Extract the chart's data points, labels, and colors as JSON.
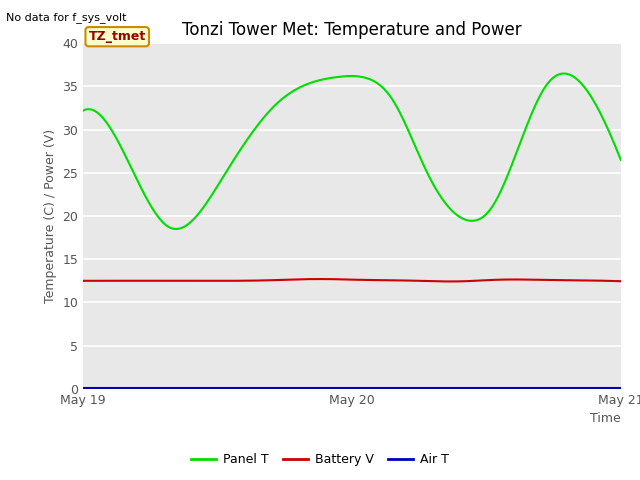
{
  "title": "Tonzi Tower Met: Temperature and Power",
  "top_left_text": "No data for f_sys_volt",
  "xlabel": "Time",
  "ylabel": "Temperature (C) / Power (V)",
  "ylim": [
    0,
    40
  ],
  "yticks": [
    0,
    5,
    10,
    15,
    20,
    25,
    30,
    35,
    40
  ],
  "plot_bg_color": "#e8e8e8",
  "fig_bg_color": "#ffffff",
  "annotation_label": "TZ_tmet",
  "x_start": 0,
  "x_end": 2.0,
  "panel_T": {
    "color": "#00dd00",
    "label": "Panel T",
    "points_x": [
      0,
      0.18,
      0.32,
      0.52,
      0.72,
      0.95,
      1.05,
      1.15,
      1.28,
      1.43,
      1.52,
      1.62,
      1.72,
      1.83,
      2.0
    ],
    "points_y": [
      32.2,
      25.5,
      18.7,
      24.5,
      33.0,
      36.1,
      36.0,
      33.5,
      25.0,
      19.5,
      21.0,
      28.0,
      35.0,
      36.0,
      26.5
    ]
  },
  "battery_V": {
    "color": "#cc0000",
    "label": "Battery V",
    "points_x": [
      0,
      0.25,
      0.55,
      0.68,
      0.78,
      0.9,
      1.05,
      1.18,
      1.3,
      1.42,
      1.52,
      1.62,
      1.72,
      1.85,
      2.0
    ],
    "points_y": [
      12.5,
      12.5,
      12.5,
      12.55,
      12.65,
      12.7,
      12.6,
      12.55,
      12.45,
      12.45,
      12.6,
      12.65,
      12.6,
      12.55,
      12.45
    ]
  },
  "air_T": {
    "color": "#0000bb",
    "label": "Air T",
    "points_x": [
      0,
      0.45,
      2.0
    ],
    "points_y": [
      0.05,
      0.05,
      0.05
    ]
  },
  "x_ticks": [
    0,
    1.0,
    2.0
  ],
  "x_tick_labels": [
    "May 19",
    "May 20",
    "May 21"
  ],
  "title_fontsize": 12,
  "label_fontsize": 9,
  "tick_fontsize": 9,
  "legend_fontsize": 9,
  "top_left_fontsize": 8,
  "annotation_fontsize": 9
}
